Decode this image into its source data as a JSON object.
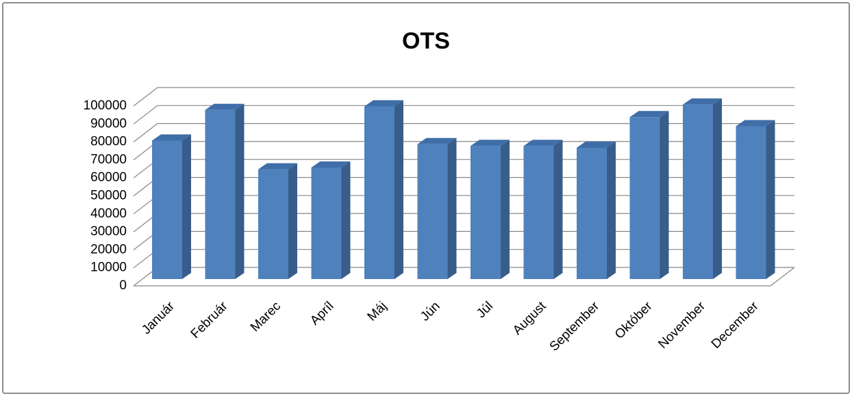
{
  "chart_data": {
    "type": "bar3d",
    "title": "OTS",
    "categories": [
      "Január",
      "Február",
      "Marec",
      "Apríl",
      "Máj",
      "Jún",
      "Júl",
      "August",
      "September",
      "Október",
      "November",
      "December"
    ],
    "values": [
      77000,
      94000,
      61000,
      62000,
      96000,
      75000,
      74000,
      74000,
      73000,
      90000,
      97000,
      85000
    ],
    "color": "#4f81bd",
    "ylim": [
      0,
      100000
    ],
    "yticks": [
      0,
      10000,
      20000,
      30000,
      40000,
      50000,
      60000,
      70000,
      80000,
      90000,
      100000
    ],
    "grid": true
  }
}
